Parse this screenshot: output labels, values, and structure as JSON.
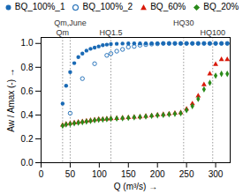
{
  "chart_data": {
    "type": "scatter",
    "xlabel": "Q (m³/s)",
    "ylabel": "Aw / Amax (-)",
    "xlim": [
      0,
      325
    ],
    "ylim": [
      0,
      1.05
    ],
    "xticks": [
      0,
      50,
      100,
      150,
      200,
      250,
      300
    ],
    "yticks": [
      {
        "value": 0,
        "label": "0.0"
      },
      0.2,
      0.4,
      0.6,
      0.8,
      {
        "value": 1.0,
        "label": "1.0"
      }
    ],
    "grid": false,
    "legend": "top",
    "annotations": [
      {
        "x": 37,
        "text": "Qm"
      },
      {
        "x": 50,
        "text": "Qm,June"
      },
      {
        "x": 120,
        "text": "HQ1.5"
      },
      {
        "x": 245,
        "text": "HQ30"
      },
      {
        "x": 295,
        "text": "HQ100"
      }
    ],
    "series": [
      {
        "name": "BQ_100%_1",
        "color": "#1a6ab5",
        "marker": "circle",
        "x": [
          37,
          43,
          50,
          57,
          64,
          71,
          78,
          85,
          92,
          99,
          106,
          113,
          120,
          130,
          140,
          150,
          160,
          170,
          180,
          190,
          200,
          210,
          220,
          230,
          240,
          250,
          260,
          270,
          280,
          290,
          300,
          310,
          320
        ],
        "values": [
          0.495,
          0.645,
          0.76,
          0.835,
          0.885,
          0.915,
          0.94,
          0.955,
          0.965,
          0.975,
          0.985,
          0.99,
          0.995,
          0.997,
          0.999,
          1.0,
          1.0,
          1.0,
          1.0,
          1.0,
          1.0,
          1.0,
          1.0,
          1.0,
          1.0,
          1.0,
          1.0,
          1.0,
          1.0,
          1.0,
          1.0,
          1.0,
          1.0
        ]
      },
      {
        "name": "BQ_100%_2",
        "color": "#1a6ab5",
        "marker": "open circle",
        "x": [
          50,
          71,
          92,
          113,
          120,
          130,
          140,
          150,
          160,
          170,
          180,
          190,
          200,
          210,
          220,
          230,
          240,
          250,
          260,
          270,
          280,
          290,
          300,
          310,
          320
        ],
        "values": [
          0.415,
          0.705,
          0.83,
          0.9,
          0.915,
          0.935,
          0.95,
          0.97,
          0.975,
          0.985,
          0.99,
          0.995,
          0.997,
          1.0,
          1.0,
          1.0,
          1.0,
          1.0,
          1.0,
          1.0,
          1.0,
          1.0,
          1.0,
          1.0,
          1.0
        ]
      },
      {
        "name": "BQ_60%",
        "color": "#d9190a",
        "marker": "triangle",
        "x": [
          37,
          43,
          50,
          57,
          64,
          71,
          78,
          85,
          92,
          99,
          106,
          113,
          120,
          130,
          140,
          150,
          160,
          170,
          180,
          190,
          200,
          210,
          220,
          230,
          240,
          250,
          260,
          270,
          280,
          290,
          300,
          310,
          320
        ],
        "values": [
          0.315,
          0.325,
          0.33,
          0.335,
          0.34,
          0.345,
          0.35,
          0.355,
          0.36,
          0.365,
          0.365,
          0.368,
          0.37,
          0.372,
          0.375,
          0.378,
          0.382,
          0.385,
          0.39,
          0.395,
          0.4,
          0.405,
          0.41,
          0.415,
          0.42,
          0.45,
          0.495,
          0.56,
          0.655,
          0.745,
          0.825,
          0.865,
          0.865
        ]
      },
      {
        "name": "BQ_20%",
        "color": "#2a8a1a",
        "marker": "diamond",
        "x": [
          37,
          43,
          50,
          57,
          64,
          71,
          78,
          85,
          92,
          99,
          106,
          113,
          120,
          130,
          140,
          150,
          160,
          170,
          180,
          190,
          200,
          210,
          220,
          230,
          240,
          250,
          260,
          270,
          280,
          290,
          300,
          310,
          320
        ],
        "values": [
          0.31,
          0.32,
          0.325,
          0.33,
          0.335,
          0.34,
          0.345,
          0.35,
          0.355,
          0.36,
          0.362,
          0.365,
          0.368,
          0.37,
          0.373,
          0.376,
          0.38,
          0.383,
          0.387,
          0.392,
          0.397,
          0.4,
          0.405,
          0.41,
          0.415,
          0.44,
          0.475,
          0.535,
          0.615,
          0.67,
          0.73,
          0.745,
          0.745
        ]
      }
    ]
  }
}
